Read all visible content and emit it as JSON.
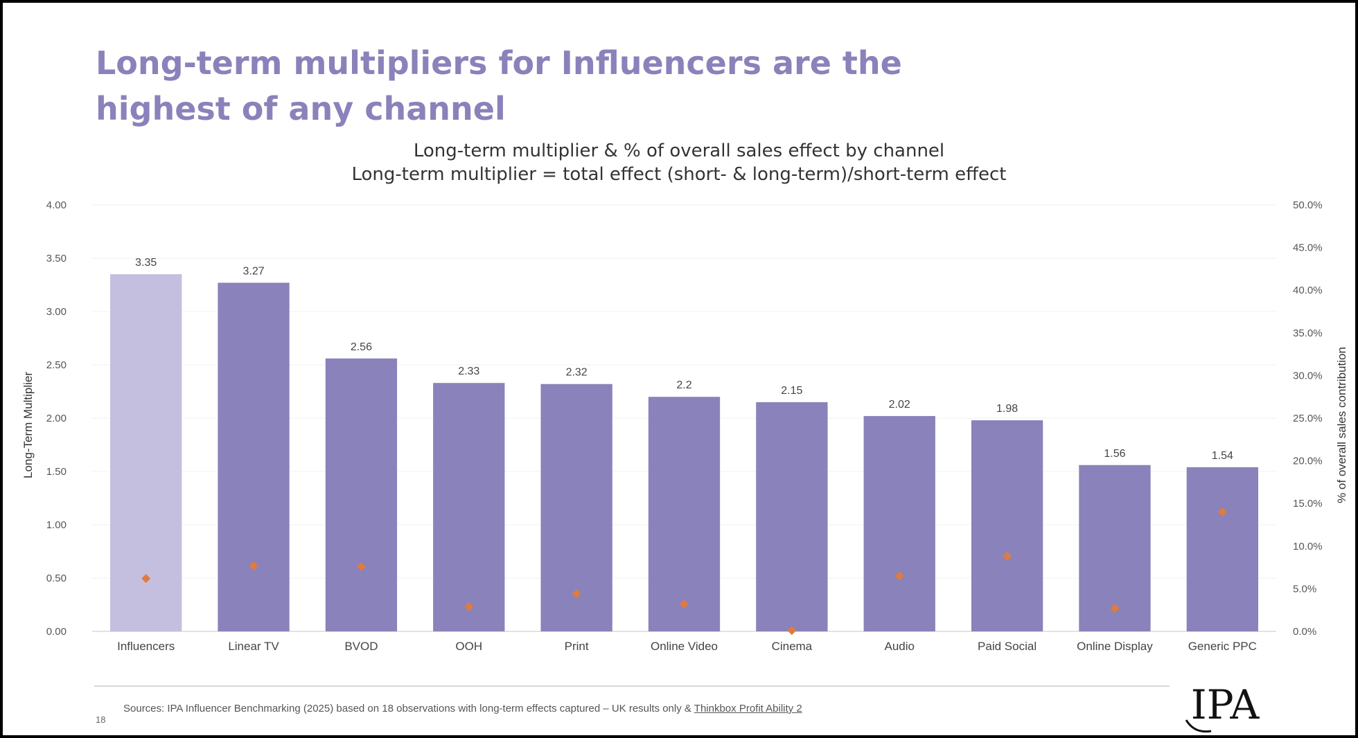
{
  "slide": {
    "title_line1": "Long-term multipliers for Influencers are the",
    "title_line2": "highest of any channel",
    "page_number": "18",
    "sources_text": "Sources: IPA Influencer Benchmarking (2025) based on 18 observations with long-term effects captured – UK results only & ",
    "sources_link": "Thinkbox Profit Ability 2",
    "logo_text": "IPA"
  },
  "colors": {
    "title": "#8a82ba",
    "bar": "#8a82ba",
    "bar_highlight": "#c4bfdf",
    "marker": "#e07b3f",
    "text": "#333333"
  },
  "chart_data": {
    "type": "bar",
    "title": "Long-term multiplier & % of overall sales effect by channel",
    "subtitle": "Long-term multiplier = total effect (short- & long-term)/short-term effect",
    "ylabel": "Long-Term Multiplier",
    "y2label": "% of overall sales contribution",
    "ylim": [
      0,
      4
    ],
    "y2lim": [
      0,
      50
    ],
    "yticks": [
      "0.00",
      "0.50",
      "1.00",
      "1.50",
      "2.00",
      "2.50",
      "3.00",
      "3.50",
      "4.00"
    ],
    "y2ticks": [
      "0.0%",
      "5.0%",
      "10.0%",
      "15.0%",
      "20.0%",
      "25.0%",
      "30.0%",
      "35.0%",
      "40.0%",
      "45.0%",
      "50.0%"
    ],
    "categories": [
      "Influencers",
      "Linear TV",
      "BVOD",
      "OOH",
      "Print",
      "Online Video",
      "Cinema",
      "Audio",
      "Paid Social",
      "Online Display",
      "Generic PPC"
    ],
    "series": [
      {
        "name": "Long-term multiplier",
        "type": "bar",
        "axis": "left",
        "values": [
          3.35,
          3.27,
          2.56,
          2.33,
          2.32,
          2.2,
          2.15,
          2.02,
          1.98,
          1.56,
          1.54
        ],
        "labels": [
          "3.35",
          "3.27",
          "2.56",
          "2.33",
          "2.32",
          "2.2",
          "2.15",
          "2.02",
          "1.98",
          "1.56",
          "1.54"
        ],
        "highlight_index": 0
      },
      {
        "name": "% of overall sales effect",
        "type": "scatter",
        "axis": "right",
        "values": [
          6.2,
          7.7,
          7.6,
          2.9,
          4.4,
          3.2,
          0.1,
          6.5,
          8.8,
          2.7,
          14.0
        ]
      }
    ]
  }
}
